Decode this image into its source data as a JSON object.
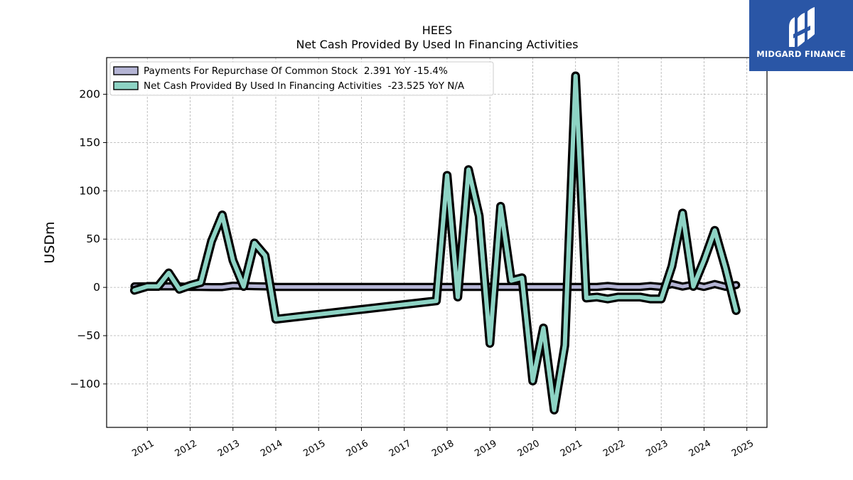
{
  "chart_data": {
    "type": "line",
    "title": "HEES",
    "subtitle": "Net Cash Provided By Used In Financing Activities",
    "ylabel": "USDm",
    "xlabel": "",
    "ylim": [
      -145,
      238
    ],
    "xlim": [
      2010.05,
      2025.47
    ],
    "x_ticks": [
      2011,
      2012,
      2013,
      2014,
      2015,
      2016,
      2017,
      2018,
      2019,
      2020,
      2021,
      2022,
      2023,
      2024,
      2025
    ],
    "y_ticks": [
      -100,
      -50,
      0,
      50,
      100,
      150,
      200
    ],
    "grid": true,
    "legend_position": "top-left",
    "series": [
      {
        "name": "Payments For Repurchase Of Common Stock",
        "legend_label": "Payments For Repurchase Of Common Stock  2.391 YoY -15.4%",
        "color": "#b4b4d4",
        "x": [
          2010.7,
          2011.0,
          2011.25,
          2011.5,
          2011.75,
          2012.0,
          2012.25,
          2012.5,
          2012.75,
          2013.0,
          2013.25,
          2013.5,
          2013.75,
          2014.0,
          2017.75,
          2018.0,
          2018.25,
          2018.5,
          2018.75,
          2019.0,
          2019.25,
          2019.5,
          2019.75,
          2020.0,
          2020.25,
          2020.5,
          2020.75,
          2021.0,
          2021.25,
          2021.5,
          2021.75,
          2022.0,
          2022.25,
          2022.5,
          2022.75,
          2023.0,
          2023.25,
          2023.5,
          2023.75,
          2024.0,
          2024.25,
          2024.5,
          2024.75
        ],
        "values": [
          1.0,
          1.0,
          1.0,
          1.0,
          1.0,
          0.5,
          0.5,
          0.3,
          0.3,
          1.8,
          1.5,
          1.2,
          1.0,
          0.5,
          0.5,
          0.5,
          0.5,
          0.5,
          0.5,
          0.5,
          0.5,
          0.5,
          0.5,
          0.5,
          0.5,
          0.5,
          0.5,
          0.5,
          0.5,
          0.5,
          1.5,
          0.5,
          0.5,
          0.5,
          1.5,
          0.5,
          3.5,
          0.8,
          3.0,
          0.5,
          3.5,
          0.6,
          2.4
        ]
      },
      {
        "name": "Net Cash Provided By Used In Financing Activities",
        "legend_label": "Net Cash Provided By Used In Financing Activities  -23.525 YoY N/A",
        "color": "#8dd3c4",
        "x": [
          2010.7,
          2011.0,
          2011.25,
          2011.5,
          2011.75,
          2012.0,
          2012.25,
          2012.5,
          2012.75,
          2013.0,
          2013.25,
          2013.5,
          2013.75,
          2014.0,
          2017.75,
          2018.0,
          2018.25,
          2018.5,
          2018.75,
          2019.0,
          2019.25,
          2019.5,
          2019.75,
          2020.0,
          2020.25,
          2020.5,
          2020.75,
          2021.0,
          2021.25,
          2021.5,
          2021.75,
          2022.0,
          2022.25,
          2022.5,
          2022.75,
          2023.0,
          2023.25,
          2023.5,
          2023.75,
          2024.0,
          2024.25,
          2024.5,
          2024.75
        ],
        "values": [
          -3,
          1,
          1,
          15,
          -2,
          2,
          5,
          48,
          75,
          28,
          1,
          46,
          33,
          -33,
          -14,
          116,
          -10,
          122,
          74,
          -58,
          84,
          7,
          10,
          -97,
          -42,
          -127,
          -60,
          219,
          -11,
          -10,
          -12,
          -10,
          -10,
          -10,
          -12,
          -12,
          22,
          77,
          1,
          28,
          59,
          20,
          -24
        ]
      }
    ]
  },
  "logo": {
    "text": "MIDGARD FINANCE"
  }
}
